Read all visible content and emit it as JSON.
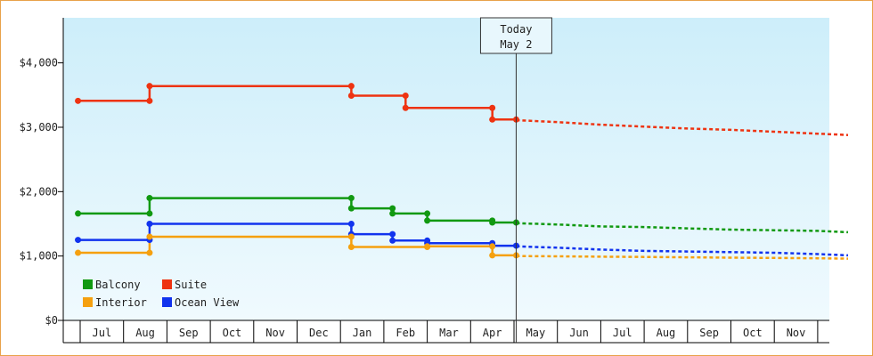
{
  "chart_data": {
    "type": "line",
    "style": "step",
    "ylim": [
      0,
      4700
    ],
    "y_ticks": [
      0,
      1000,
      2000,
      3000,
      4000
    ],
    "y_tick_labels": [
      "$0",
      "$1,000",
      "$2,000",
      "$3,000",
      "$4,000"
    ],
    "month_labels": [
      "Jul",
      "Aug",
      "Sep",
      "Oct",
      "Nov",
      "Dec",
      "Jan",
      "Feb",
      "Mar",
      "Apr",
      "May",
      "Jun",
      "Jul",
      "Aug",
      "Sep",
      "Oct",
      "Nov"
    ],
    "x_domain": [
      0,
      17.7
    ],
    "today": {
      "line1": "Today",
      "line2": "May 2",
      "x": 10.05
    },
    "grid": false,
    "background_gradient": [
      "#cdeefa",
      "#f0fafe"
    ],
    "legend": {
      "placement": "bottom-left",
      "entries": [
        {
          "name": "Balcony",
          "color": "#119911"
        },
        {
          "name": "Suite",
          "color": "#ee3311"
        },
        {
          "name": "Interior",
          "color": "#f5a00f"
        },
        {
          "name": "Ocean View",
          "color": "#1133ee"
        }
      ]
    },
    "series": [
      {
        "name": "Suite",
        "color": "#ee3311",
        "points": [
          [
            -0.05,
            3410
          ],
          [
            1.6,
            3410
          ],
          [
            1.6,
            3640
          ],
          [
            6.25,
            3640
          ],
          [
            6.25,
            3490
          ],
          [
            7.5,
            3490
          ],
          [
            7.5,
            3300
          ],
          [
            9.5,
            3300
          ],
          [
            9.5,
            3120
          ],
          [
            10.05,
            3120
          ]
        ],
        "forecast": [
          [
            10.05,
            3110
          ],
          [
            11.0,
            3080
          ],
          [
            12.0,
            3040
          ],
          [
            13.0,
            3010
          ],
          [
            14.0,
            2980
          ],
          [
            15.0,
            2960
          ],
          [
            16.0,
            2930
          ],
          [
            17.0,
            2900
          ],
          [
            17.7,
            2880
          ]
        ]
      },
      {
        "name": "Balcony",
        "color": "#119911",
        "points": [
          [
            -0.05,
            1660
          ],
          [
            1.6,
            1660
          ],
          [
            1.6,
            1900
          ],
          [
            6.25,
            1900
          ],
          [
            6.25,
            1740
          ],
          [
            7.2,
            1740
          ],
          [
            7.2,
            1660
          ],
          [
            8.0,
            1660
          ],
          [
            8.0,
            1550
          ],
          [
            9.5,
            1550
          ],
          [
            9.5,
            1520
          ],
          [
            10.05,
            1520
          ]
        ],
        "forecast": [
          [
            10.05,
            1510
          ],
          [
            11.0,
            1490
          ],
          [
            12.0,
            1460
          ],
          [
            13.0,
            1450
          ],
          [
            14.0,
            1430
          ],
          [
            15.0,
            1410
          ],
          [
            16.0,
            1400
          ],
          [
            17.0,
            1390
          ],
          [
            17.7,
            1370
          ]
        ]
      },
      {
        "name": "Ocean View",
        "color": "#1133ee",
        "points": [
          [
            -0.05,
            1250
          ],
          [
            1.6,
            1250
          ],
          [
            1.6,
            1500
          ],
          [
            6.25,
            1500
          ],
          [
            6.25,
            1340
          ],
          [
            7.2,
            1340
          ],
          [
            7.2,
            1240
          ],
          [
            8.0,
            1240
          ],
          [
            8.0,
            1200
          ],
          [
            9.5,
            1200
          ],
          [
            9.5,
            1160
          ],
          [
            10.05,
            1160
          ]
        ],
        "forecast": [
          [
            10.05,
            1150
          ],
          [
            11.0,
            1130
          ],
          [
            12.0,
            1100
          ],
          [
            13.0,
            1080
          ],
          [
            14.0,
            1070
          ],
          [
            15.0,
            1060
          ],
          [
            16.0,
            1050
          ],
          [
            17.0,
            1030
          ],
          [
            17.7,
            1010
          ]
        ]
      },
      {
        "name": "Interior",
        "color": "#f5a00f",
        "points": [
          [
            -0.05,
            1050
          ],
          [
            1.6,
            1050
          ],
          [
            1.6,
            1300
          ],
          [
            6.25,
            1300
          ],
          [
            6.25,
            1140
          ],
          [
            8.0,
            1140
          ],
          [
            8.0,
            1150
          ],
          [
            9.5,
            1150
          ],
          [
            9.5,
            1010
          ],
          [
            10.05,
            1010
          ]
        ],
        "forecast": [
          [
            10.05,
            1000
          ],
          [
            11.0,
            995
          ],
          [
            12.0,
            990
          ],
          [
            13.0,
            985
          ],
          [
            14.0,
            980
          ],
          [
            15.0,
            975
          ],
          [
            16.0,
            970
          ],
          [
            17.0,
            965
          ],
          [
            17.7,
            960
          ]
        ]
      }
    ]
  }
}
